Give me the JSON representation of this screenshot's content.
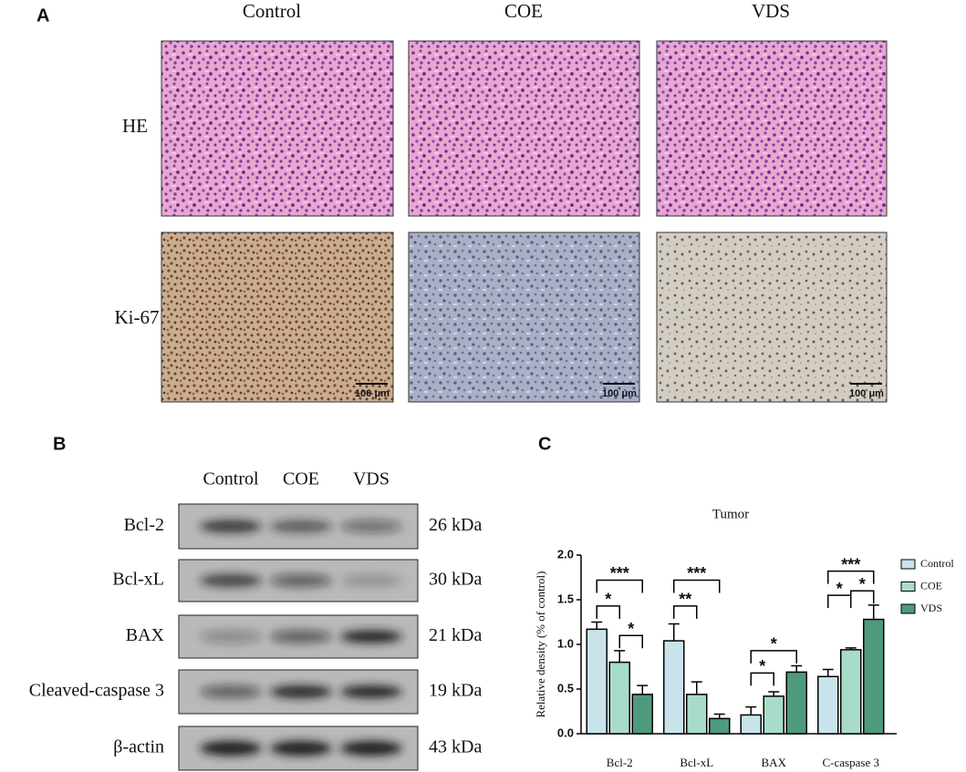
{
  "panels": {
    "a": {
      "label": "A",
      "columns": [
        "Control",
        "COE",
        "VDS"
      ],
      "rows": [
        "HE",
        "Ki-67"
      ],
      "scale_bar": "100 μm"
    },
    "b": {
      "label": "B",
      "lanes": [
        "Control",
        "COE",
        "VDS"
      ],
      "proteins": [
        {
          "name": "Bcl-2",
          "size": "26 kDa"
        },
        {
          "name": "Bcl-xL",
          "size": "30 kDa"
        },
        {
          "name": "BAX",
          "size": "21 kDa"
        },
        {
          "name": "Cleaved-caspase 3",
          "size": "19 kDa"
        },
        {
          "name": "β-actin",
          "size": "43 kDa"
        }
      ]
    },
    "c": {
      "label": "C"
    }
  },
  "chart_data": {
    "type": "bar",
    "title": "Tumor",
    "y_label": "Relative density (% of control)",
    "categories": [
      "Bcl-2",
      "Bcl-xL",
      "BAX",
      "C-caspase 3"
    ],
    "series": [
      {
        "name": "Control",
        "color": "#c9e3ec",
        "values": [
          1.17,
          1.04,
          0.21,
          0.64
        ],
        "errors": [
          0.08,
          0.19,
          0.09,
          0.08
        ]
      },
      {
        "name": "COE",
        "color": "#a8dcc8",
        "values": [
          0.8,
          0.44,
          0.42,
          0.94
        ],
        "errors": [
          0.13,
          0.14,
          0.05,
          0.02
        ]
      },
      {
        "name": "VDS",
        "color": "#4e9a7d",
        "values": [
          0.44,
          0.17,
          0.69,
          1.28
        ],
        "errors": [
          0.1,
          0.05,
          0.07,
          0.16
        ]
      }
    ],
    "ylim": [
      0,
      2
    ],
    "yticks": [
      {
        "value": 0,
        "label": "0.0"
      },
      0.5,
      {
        "value": 1,
        "label": "1.0"
      },
      1.5,
      {
        "value": 2,
        "label": "2.0"
      }
    ],
    "legend": "right",
    "annotations": [
      "***",
      "*",
      "*",
      "***",
      "**",
      "*",
      "*",
      "***",
      "*",
      "*"
    ]
  }
}
